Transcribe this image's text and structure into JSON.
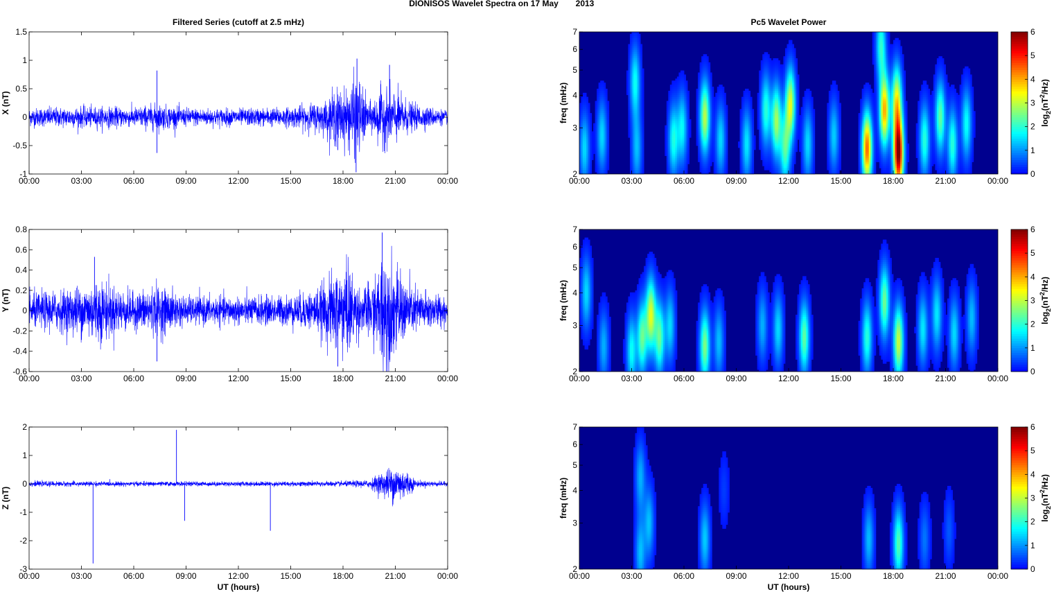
{
  "suptitle": "DIONISOS Wavelet Spectra on 17 May",
  "suptitle_year": "2013",
  "colors": {
    "trace": "#0000ff",
    "background_power": "#00008f",
    "axis": "#000000",
    "colormap": "jet"
  },
  "chart_data": [
    {
      "type": "line",
      "title": "Filtered Series (cutoff at 2.5 mHz)",
      "xlabel": "",
      "ylabel": "X (nT)",
      "xlim": [
        "00:00",
        "00:00 (next day)"
      ],
      "xticks": [
        "00:00",
        "03:00",
        "06:00",
        "09:00",
        "12:00",
        "15:00",
        "18:00",
        "21:00",
        "00:00"
      ],
      "ylim": [
        -1,
        1.5
      ],
      "yticks": [
        "-1",
        "-0.5",
        "0",
        "0.5",
        "1",
        "1.5"
      ],
      "grid": false,
      "series": [
        {
          "values_description_envelope_hours": [
            0,
            3,
            6,
            7.3,
            9,
            12,
            15,
            17,
            17.6,
            18,
            18.5,
            18.8,
            19.5,
            20.2,
            21,
            22,
            24
          ],
          "envelope_amplitude_nT": [
            0.14,
            0.16,
            0.15,
            0.2,
            0.14,
            0.13,
            0.15,
            0.25,
            0.45,
            0.4,
            0.55,
            0.65,
            0.2,
            0.45,
            0.4,
            0.2,
            0.1
          ],
          "spikes": [
            {
              "time": "07:20",
              "value": 0.82
            },
            {
              "time": "07:20",
              "value": -0.63
            },
            {
              "time": "18:48",
              "value": 1.03
            },
            {
              "time": "18:45",
              "value": -0.97
            },
            {
              "time": "17:42",
              "value": -0.58
            },
            {
              "time": "20:40",
              "value": 0.92
            }
          ]
        }
      ]
    },
    {
      "type": "line",
      "title": "",
      "xlabel": "",
      "ylabel": "Y (nT)",
      "xticks": [
        "00:00",
        "03:00",
        "06:00",
        "09:00",
        "12:00",
        "15:00",
        "18:00",
        "21:00",
        "00:00"
      ],
      "ylim": [
        -0.6,
        0.8
      ],
      "yticks": [
        "-0.6",
        "-0.4",
        "-0.2",
        "0",
        "0.2",
        "0.4",
        "0.6",
        "0.8"
      ],
      "grid": false,
      "series": [
        {
          "values_description_envelope_hours": [
            0,
            2,
            3,
            4,
            5,
            6,
            7.3,
            9,
            12,
            15,
            16.5,
            17.6,
            18.3,
            19,
            20,
            20.3,
            21,
            22,
            24
          ],
          "envelope_amplitude_nT": [
            0.15,
            0.18,
            0.22,
            0.28,
            0.2,
            0.15,
            0.22,
            0.12,
            0.12,
            0.13,
            0.18,
            0.35,
            0.4,
            0.18,
            0.3,
            0.6,
            0.35,
            0.2,
            0.12
          ],
          "spikes": [
            {
              "time": "20:15",
              "value": 0.77
            },
            {
              "time": "17:42",
              "value": -0.55
            },
            {
              "time": "07:20",
              "value": -0.5
            },
            {
              "time": "03:45",
              "value": 0.53
            }
          ]
        }
      ]
    },
    {
      "type": "line",
      "title": "",
      "xlabel": "UT (hours)",
      "ylabel": "Z (nT)",
      "xticks": [
        "00:00",
        "03:00",
        "06:00",
        "09:00",
        "12:00",
        "15:00",
        "18:00",
        "21:00",
        "00:00"
      ],
      "ylim": [
        -3,
        2
      ],
      "yticks": [
        "-3",
        "-2",
        "-1",
        "0",
        "1",
        "2"
      ],
      "grid": false,
      "series": [
        {
          "values_description_envelope_hours": [
            0,
            6,
            12,
            18,
            19.5,
            20.2,
            21,
            21.6,
            22.2,
            24
          ],
          "envelope_amplitude_nT": [
            0.08,
            0.07,
            0.07,
            0.08,
            0.12,
            0.35,
            0.6,
            0.45,
            0.1,
            0.07
          ],
          "spikes": [
            {
              "time": "03:40",
              "value": -2.8
            },
            {
              "time": "08:27",
              "value": 1.9
            },
            {
              "time": "08:55",
              "value": -1.3
            },
            {
              "time": "13:50",
              "value": -1.65
            }
          ]
        }
      ]
    },
    {
      "type": "heatmap",
      "title": "Pc5 Wavelet Power",
      "xlabel": "",
      "ylabel": "freq (mHz)",
      "xticks": [
        "00:00",
        "03:00",
        "06:00",
        "09:00",
        "12:00",
        "15:00",
        "18:00",
        "21:00",
        "00:00"
      ],
      "ylim": [
        2,
        7
      ],
      "yscale": "log",
      "yticks": [
        "2",
        "3",
        "4",
        "5",
        "6",
        "7"
      ],
      "colorbar": {
        "label_main": "log",
        "label_sub": "2",
        "label_rest": "(nT",
        "label_sup": "2",
        "label_end": "/Hz)",
        "range": [
          0,
          6
        ],
        "ticks": [
          "0",
          "1",
          "2",
          "3",
          "4",
          "5",
          "6"
        ]
      },
      "blobs": [
        {
          "hour": 0.3,
          "freq": 2.5,
          "power": 1.5
        },
        {
          "hour": 1.3,
          "freq": 2.8,
          "power": 1.5
        },
        {
          "hour": 3.2,
          "freq": 4.5,
          "power": 1.8
        },
        {
          "hour": 3.3,
          "freq": 2.5,
          "power": 1.3
        },
        {
          "hour": 5.4,
          "freq": 2.7,
          "power": 1.9
        },
        {
          "hour": 5.9,
          "freq": 3.0,
          "power": 1.7
        },
        {
          "hour": 7.2,
          "freq": 3.3,
          "power": 3.0
        },
        {
          "hour": 8.1,
          "freq": 2.7,
          "power": 1.5
        },
        {
          "hour": 9.6,
          "freq": 2.6,
          "power": 1.6
        },
        {
          "hour": 10.7,
          "freq": 3.5,
          "power": 2.0
        },
        {
          "hour": 11.3,
          "freq": 3.2,
          "power": 2.8
        },
        {
          "hour": 12.1,
          "freq": 3.7,
          "power": 3.2
        },
        {
          "hour": 11.8,
          "freq": 2.5,
          "power": 2.2
        },
        {
          "hour": 13.1,
          "freq": 2.6,
          "power": 1.5
        },
        {
          "hour": 14.6,
          "freq": 2.8,
          "power": 1.4
        },
        {
          "hour": 16.5,
          "freq": 2.5,
          "power": 4.5
        },
        {
          "hour": 17.5,
          "freq": 3.5,
          "power": 4.0
        },
        {
          "hour": 18.3,
          "freq": 2.4,
          "power": 6.0
        },
        {
          "hour": 18.2,
          "freq": 3.8,
          "power": 3.3
        },
        {
          "hour": 19.8,
          "freq": 2.7,
          "power": 2.0
        },
        {
          "hour": 20.7,
          "freq": 3.3,
          "power": 2.4
        },
        {
          "hour": 21.4,
          "freq": 2.6,
          "power": 2.0
        },
        {
          "hour": 22.2,
          "freq": 3.1,
          "power": 1.8
        },
        {
          "hour": 17.3,
          "freq": 6.2,
          "power": 2.0
        }
      ]
    },
    {
      "type": "heatmap",
      "title": "",
      "xlabel": "",
      "ylabel": "freq (mHz)",
      "xticks": [
        "00:00",
        "03:00",
        "06:00",
        "09:00",
        "12:00",
        "15:00",
        "18:00",
        "21:00",
        "00:00"
      ],
      "ylim": [
        2,
        7
      ],
      "yscale": "log",
      "yticks": [
        "2",
        "3",
        "4",
        "5",
        "6",
        "7"
      ],
      "colorbar": {
        "range": [
          0,
          6
        ],
        "ticks": [
          "0",
          "1",
          "2",
          "3",
          "4",
          "5",
          "6"
        ]
      },
      "blobs": [
        {
          "hour": 0.4,
          "freq": 4.0,
          "power": 1.5
        },
        {
          "hour": 1.4,
          "freq": 2.5,
          "power": 1.2
        },
        {
          "hour": 3.0,
          "freq": 2.4,
          "power": 1.8
        },
        {
          "hour": 3.6,
          "freq": 2.7,
          "power": 2.4
        },
        {
          "hour": 4.1,
          "freq": 3.3,
          "power": 3.2
        },
        {
          "hour": 4.6,
          "freq": 2.7,
          "power": 2.4
        },
        {
          "hour": 5.2,
          "freq": 3.0,
          "power": 1.5
        },
        {
          "hour": 7.2,
          "freq": 2.5,
          "power": 2.6
        },
        {
          "hour": 8.0,
          "freq": 2.6,
          "power": 1.3
        },
        {
          "hour": 10.5,
          "freq": 3.0,
          "power": 1.2
        },
        {
          "hour": 11.4,
          "freq": 2.9,
          "power": 1.5
        },
        {
          "hour": 12.9,
          "freq": 2.7,
          "power": 2.4
        },
        {
          "hour": 16.5,
          "freq": 2.7,
          "power": 2.0
        },
        {
          "hour": 17.5,
          "freq": 3.7,
          "power": 2.5
        },
        {
          "hour": 18.3,
          "freq": 2.6,
          "power": 3.1
        },
        {
          "hour": 19.7,
          "freq": 2.9,
          "power": 1.6
        },
        {
          "hour": 20.5,
          "freq": 3.3,
          "power": 1.6
        },
        {
          "hour": 21.5,
          "freq": 2.8,
          "power": 1.5
        },
        {
          "hour": 22.5,
          "freq": 3.2,
          "power": 1.3
        }
      ]
    },
    {
      "type": "heatmap",
      "title": "",
      "xlabel": "UT (hours)",
      "ylabel": "freq (mHz)",
      "xticks": [
        "00:00",
        "03:00",
        "06:00",
        "09:00",
        "12:00",
        "15:00",
        "18:00",
        "21:00",
        "00:00"
      ],
      "ylim": [
        2,
        7
      ],
      "yscale": "log",
      "yticks": [
        "2",
        "3",
        "4",
        "5",
        "6",
        "7"
      ],
      "colorbar": {
        "range": [
          0,
          6
        ],
        "ticks": [
          "0",
          "1",
          "2",
          "3",
          "4",
          "5",
          "6"
        ]
      },
      "blobs": [
        {
          "hour": 3.5,
          "freq": 4.5,
          "power": 1.2
        },
        {
          "hour": 3.5,
          "freq": 2.3,
          "power": 1.3
        },
        {
          "hour": 4.0,
          "freq": 3.0,
          "power": 1.3
        },
        {
          "hour": 7.2,
          "freq": 2.6,
          "power": 1.4
        },
        {
          "hour": 16.6,
          "freq": 2.6,
          "power": 1.3
        },
        {
          "hour": 18.3,
          "freq": 2.5,
          "power": 2.3
        },
        {
          "hour": 19.8,
          "freq": 2.6,
          "power": 0.8
        },
        {
          "hour": 21.2,
          "freq": 2.8,
          "power": 0.6
        },
        {
          "hour": 8.3,
          "freq": 4.0,
          "power": 0.4
        }
      ]
    }
  ]
}
